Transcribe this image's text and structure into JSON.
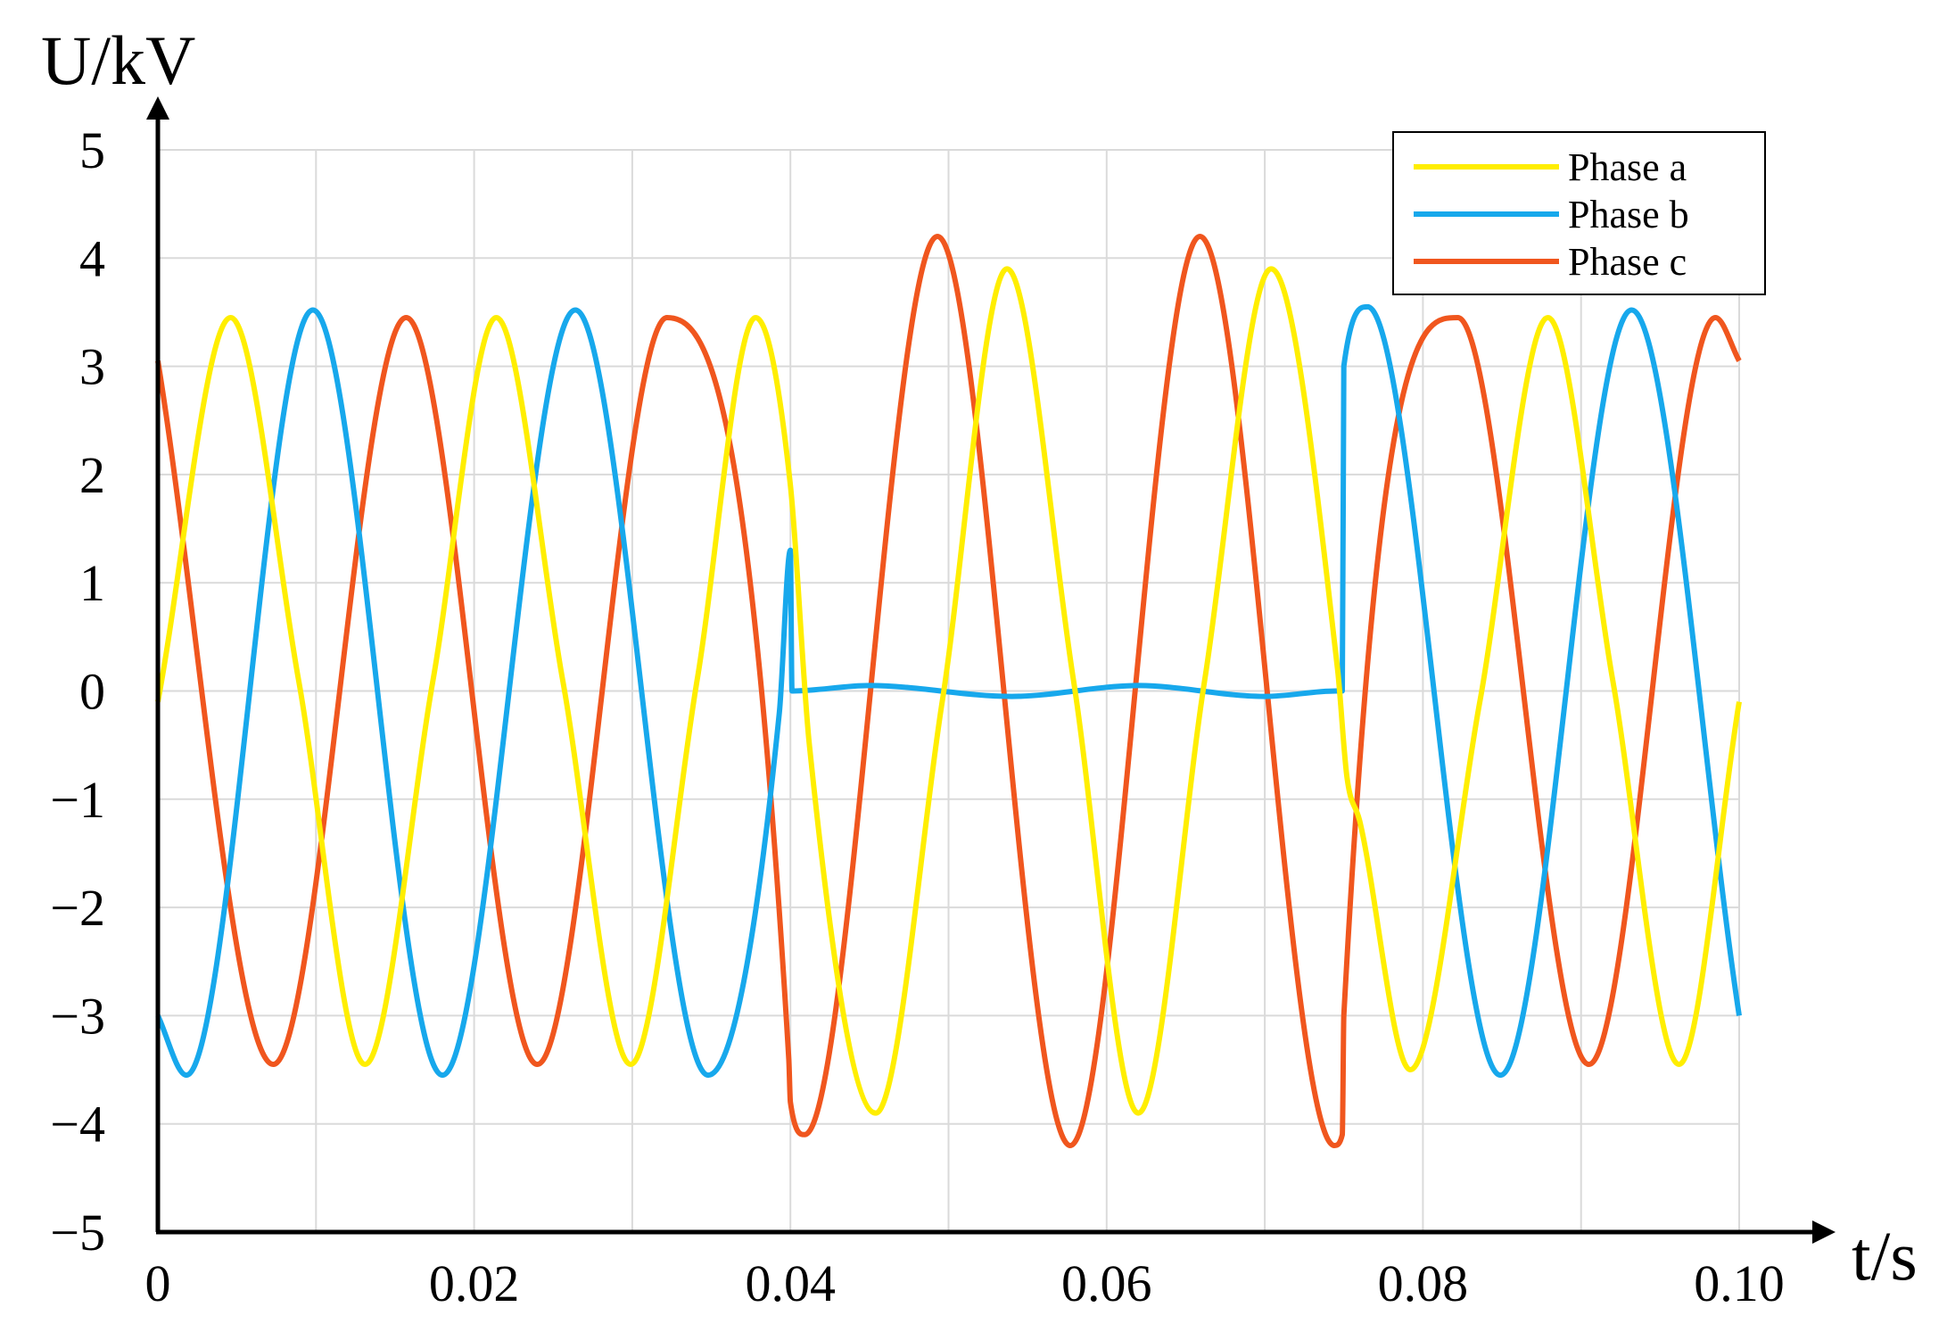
{
  "chart_data": {
    "type": "line",
    "xlabel": "t/s",
    "ylabel": "U/kV",
    "xlim": [
      0,
      0.1
    ],
    "ylim": [
      -5,
      5
    ],
    "x_ticks": [
      0,
      0.01,
      0.02,
      0.03,
      0.04,
      0.05,
      0.06,
      0.07,
      0.08,
      0.09,
      0.1
    ],
    "x_tick_labels": [
      "0",
      "",
      "0.02",
      "",
      "0.04",
      "",
      "0.06",
      "",
      "0.08",
      "",
      "0.10"
    ],
    "y_ticks": [
      -5,
      -4,
      -3,
      -2,
      -1,
      0,
      1,
      2,
      3,
      4,
      5
    ],
    "y_tick_labels": [
      "−5",
      "−4",
      "−3",
      "−2",
      "−1",
      "0",
      "1",
      "2",
      "3",
      "4",
      "5"
    ],
    "grid": true,
    "legend_position": "top-right",
    "series": [
      {
        "name": "Phase a",
        "color": "#ffee00",
        "x": [
          0,
          0.0046,
          0.0089,
          0.0131,
          0.0174,
          0.0214,
          0.0256,
          0.0299,
          0.0341,
          0.0378,
          0.04,
          0.0412,
          0.0454,
          0.0496,
          0.0537,
          0.0579,
          0.062,
          0.0662,
          0.0704,
          0.0746,
          0.0752,
          0.076,
          0.0792,
          0.0836,
          0.0879,
          0.092,
          0.0962,
          0.1
        ],
        "y": [
          -0.1,
          3.45,
          0.1,
          -3.45,
          0.1,
          3.45,
          0.1,
          -3.45,
          0.1,
          3.45,
          1.9,
          -0.5,
          -3.9,
          -0.1,
          3.9,
          0.1,
          -3.9,
          0.1,
          3.9,
          0.2,
          -0.8,
          -1.2,
          -3.5,
          -0.1,
          3.45,
          0.1,
          -3.45,
          -0.1
        ]
      },
      {
        "name": "Phase b",
        "color": "#17a8ec",
        "x": [
          0,
          0.0018,
          0.0098,
          0.018,
          0.0264,
          0.0348,
          0.0393,
          0.04,
          0.0401,
          0.045,
          0.054,
          0.062,
          0.07,
          0.0745,
          0.0749,
          0.075,
          0.0765,
          0.0849,
          0.0932,
          0.1
        ],
        "y": [
          -3.0,
          -3.55,
          3.52,
          -3.55,
          3.52,
          -3.55,
          -0.2,
          1.3,
          0.0,
          0.05,
          -0.05,
          0.05,
          -0.05,
          0.0,
          0.0,
          3.0,
          3.55,
          -3.55,
          3.52,
          -3.0
        ]
      },
      {
        "name": "Phase c",
        "color": "#f0561e",
        "x": [
          0,
          0.0073,
          0.0157,
          0.024,
          0.0322,
          0.0399,
          0.04,
          0.0409,
          0.0493,
          0.0577,
          0.0659,
          0.0744,
          0.0749,
          0.075,
          0.0822,
          0.0905,
          0.0985,
          0.1
        ],
        "y": [
          3.05,
          -3.45,
          3.45,
          -3.45,
          3.45,
          -3.4,
          -3.8,
          -4.1,
          4.2,
          -4.2,
          4.2,
          -4.2,
          -4.1,
          -3.0,
          3.45,
          -3.45,
          3.45,
          3.05
        ]
      }
    ]
  }
}
